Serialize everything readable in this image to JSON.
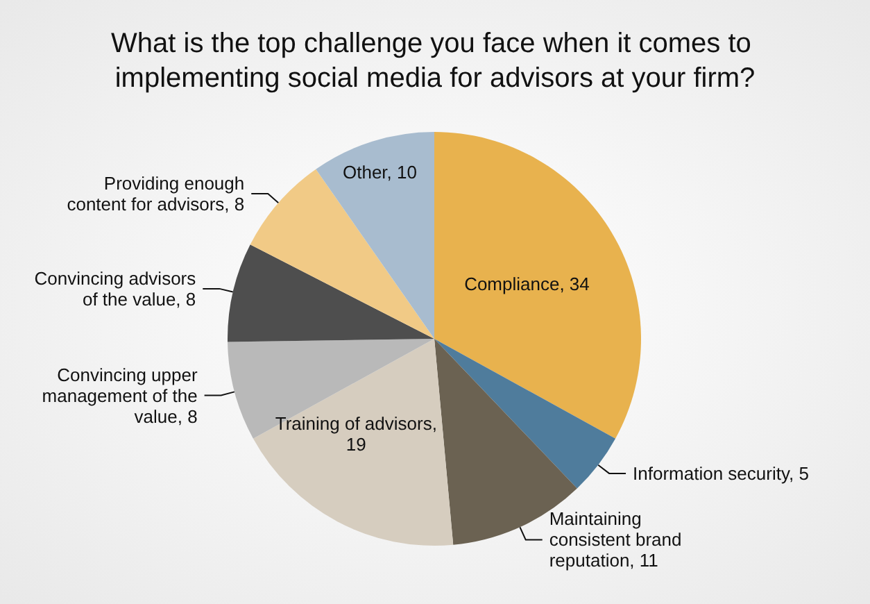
{
  "chart_data": {
    "type": "pie",
    "title": "What is the top challenge you face when it comes to implementing social media for advisors at your firm?",
    "categories": [
      "Compliance, 34",
      "Information security, 5",
      "Maintaining consistent brand reputation, 11",
      "Training of advisors, 19",
      "Convincing upper management of the value, 8",
      "Convincing advisors of the value, 8",
      "Providing enough content for advisors, 8",
      "Other, 10"
    ],
    "values": [
      34,
      5,
      11,
      19,
      8,
      8,
      8,
      10
    ],
    "colors": [
      "#e8b24e",
      "#4f7c9c",
      "#6b6252",
      "#d6cdbf",
      "#b9b9b9",
      "#4e4e4e",
      "#f1ca86",
      "#a8bccf"
    ],
    "legend": false
  }
}
